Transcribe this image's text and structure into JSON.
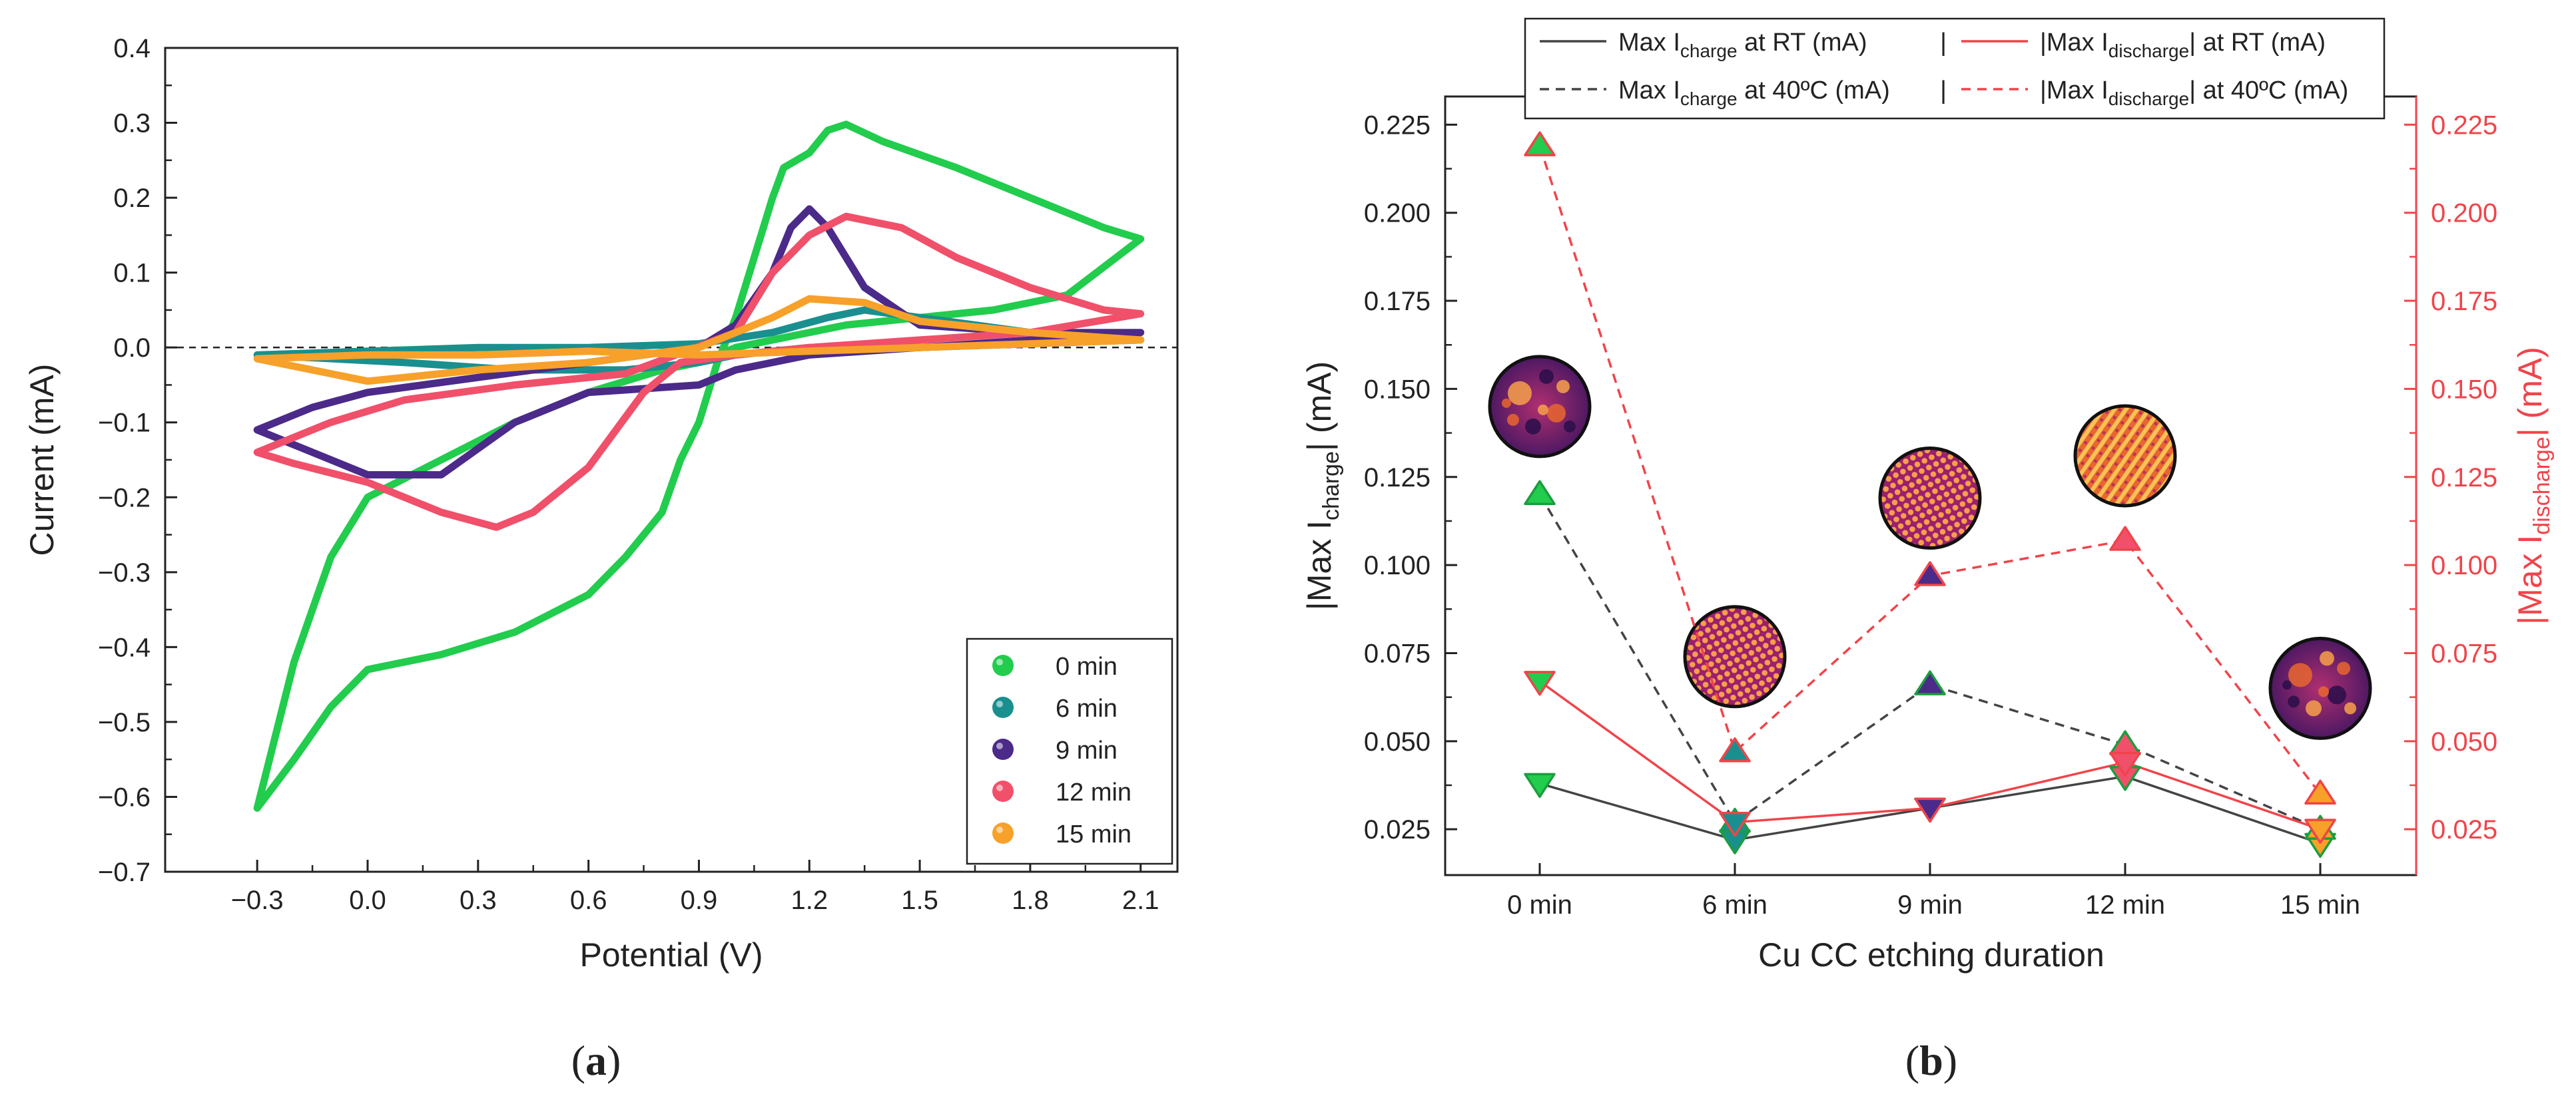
{
  "chart_data": [
    {
      "type": "line",
      "panel_label": "(a)",
      "panel_label_parts": [
        "(",
        "a",
        ")"
      ],
      "xlabel": "Potential (V)",
      "ylabel": "Current (mA)",
      "xlim": [
        -0.55,
        2.2
      ],
      "ylim": [
        -0.7,
        0.4
      ],
      "xticks": [
        "−0.3",
        "0.0",
        "0.3",
        "0.6",
        "0.9",
        "1.2",
        "1.5",
        "1.8",
        "2.1"
      ],
      "xtick_values": [
        -0.3,
        0.0,
        0.3,
        0.6,
        0.9,
        1.2,
        1.5,
        1.8,
        2.1
      ],
      "yticks": [
        "−0.7",
        "−0.6",
        "−0.5",
        "−0.4",
        "−0.3",
        "−0.2",
        "−0.1",
        "0.0",
        "0.1",
        "0.2",
        "0.3",
        "0.4"
      ],
      "ytick_values": [
        -0.7,
        -0.6,
        -0.5,
        -0.4,
        -0.3,
        -0.2,
        -0.1,
        0.0,
        0.1,
        0.2,
        0.3,
        0.4
      ],
      "zero_line": 0.0,
      "legend_position": "bottom-right",
      "series": [
        {
          "name": "0 min",
          "color": "#22cc4d",
          "points": [
            [
              -0.3,
              -0.615
            ],
            [
              -0.2,
              -0.42
            ],
            [
              -0.1,
              -0.28
            ],
            [
              0.0,
              -0.2
            ],
            [
              0.2,
              -0.15
            ],
            [
              0.4,
              -0.1
            ],
            [
              0.6,
              -0.06
            ],
            [
              0.8,
              -0.03
            ],
            [
              0.9,
              -0.02
            ],
            [
              1.0,
              0.0
            ],
            [
              1.1,
              0.01
            ],
            [
              1.3,
              0.03
            ],
            [
              1.5,
              0.04
            ],
            [
              1.7,
              0.05
            ],
            [
              1.9,
              0.07
            ],
            [
              2.1,
              0.145
            ],
            [
              2.0,
              0.16
            ],
            [
              1.8,
              0.2
            ],
            [
              1.6,
              0.24
            ],
            [
              1.4,
              0.275
            ],
            [
              1.3,
              0.298
            ],
            [
              1.25,
              0.29
            ],
            [
              1.2,
              0.26
            ],
            [
              1.13,
              0.24
            ],
            [
              1.1,
              0.2
            ],
            [
              1.05,
              0.12
            ],
            [
              1.0,
              0.04
            ],
            [
              0.95,
              -0.02
            ],
            [
              0.9,
              -0.1
            ],
            [
              0.85,
              -0.15
            ],
            [
              0.8,
              -0.22
            ],
            [
              0.7,
              -0.28
            ],
            [
              0.6,
              -0.33
            ],
            [
              0.4,
              -0.38
            ],
            [
              0.2,
              -0.41
            ],
            [
              0.0,
              -0.43
            ],
            [
              -0.1,
              -0.48
            ],
            [
              -0.2,
              -0.55
            ],
            [
              -0.3,
              -0.615
            ]
          ]
        },
        {
          "name": "6 min",
          "color": "#1a8f8f",
          "points": [
            [
              -0.3,
              -0.01
            ],
            [
              0.0,
              -0.005
            ],
            [
              0.3,
              0.0
            ],
            [
              0.6,
              0.0
            ],
            [
              0.9,
              0.005
            ],
            [
              1.1,
              0.02
            ],
            [
              1.25,
              0.04
            ],
            [
              1.35,
              0.05
            ],
            [
              1.5,
              0.04
            ],
            [
              1.8,
              0.02
            ],
            [
              2.1,
              0.01
            ],
            [
              1.8,
              0.005
            ],
            [
              1.5,
              0.0
            ],
            [
              1.2,
              0.0
            ],
            [
              1.0,
              -0.01
            ],
            [
              0.9,
              -0.02
            ],
            [
              0.7,
              -0.03
            ],
            [
              0.4,
              -0.03
            ],
            [
              0.1,
              -0.02
            ],
            [
              -0.3,
              -0.01
            ]
          ]
        },
        {
          "name": "9 min",
          "color": "#4b2a8a",
          "points": [
            [
              -0.3,
              -0.11
            ],
            [
              -0.15,
              -0.08
            ],
            [
              0.0,
              -0.06
            ],
            [
              0.3,
              -0.04
            ],
            [
              0.6,
              -0.02
            ],
            [
              0.9,
              0.0
            ],
            [
              1.0,
              0.03
            ],
            [
              1.1,
              0.1
            ],
            [
              1.15,
              0.16
            ],
            [
              1.2,
              0.185
            ],
            [
              1.25,
              0.16
            ],
            [
              1.35,
              0.08
            ],
            [
              1.5,
              0.03
            ],
            [
              1.8,
              0.02
            ],
            [
              2.1,
              0.02
            ],
            [
              1.8,
              0.01
            ],
            [
              1.5,
              0.0
            ],
            [
              1.2,
              -0.01
            ],
            [
              1.0,
              -0.03
            ],
            [
              0.9,
              -0.05
            ],
            [
              0.6,
              -0.06
            ],
            [
              0.4,
              -0.1
            ],
            [
              0.2,
              -0.17
            ],
            [
              0.0,
              -0.17
            ],
            [
              -0.15,
              -0.14
            ],
            [
              -0.3,
              -0.11
            ]
          ]
        },
        {
          "name": "12 min",
          "color": "#f0506a",
          "points": [
            [
              -0.3,
              -0.14
            ],
            [
              -0.1,
              -0.1
            ],
            [
              0.1,
              -0.07
            ],
            [
              0.4,
              -0.05
            ],
            [
              0.7,
              -0.035
            ],
            [
              1.0,
              0.02
            ],
            [
              1.1,
              0.1
            ],
            [
              1.2,
              0.15
            ],
            [
              1.3,
              0.175
            ],
            [
              1.45,
              0.16
            ],
            [
              1.6,
              0.12
            ],
            [
              1.8,
              0.08
            ],
            [
              2.0,
              0.05
            ],
            [
              2.1,
              0.045
            ],
            [
              1.8,
              0.02
            ],
            [
              1.5,
              0.01
            ],
            [
              1.2,
              0.0
            ],
            [
              1.0,
              -0.01
            ],
            [
              0.85,
              -0.02
            ],
            [
              0.75,
              -0.06
            ],
            [
              0.6,
              -0.16
            ],
            [
              0.45,
              -0.22
            ],
            [
              0.35,
              -0.24
            ],
            [
              0.2,
              -0.22
            ],
            [
              0.0,
              -0.18
            ],
            [
              -0.2,
              -0.155
            ],
            [
              -0.3,
              -0.14
            ]
          ]
        },
        {
          "name": "15 min",
          "color": "#f7a12a",
          "points": [
            [
              -0.3,
              -0.015
            ],
            [
              0.0,
              -0.045
            ],
            [
              0.3,
              -0.03
            ],
            [
              0.6,
              -0.02
            ],
            [
              0.9,
              0.0
            ],
            [
              1.1,
              0.04
            ],
            [
              1.2,
              0.065
            ],
            [
              1.35,
              0.06
            ],
            [
              1.5,
              0.035
            ],
            [
              1.8,
              0.02
            ],
            [
              2.1,
              0.01
            ],
            [
              1.8,
              0.005
            ],
            [
              1.5,
              0.0
            ],
            [
              1.2,
              -0.005
            ],
            [
              0.9,
              -0.01
            ],
            [
              0.6,
              -0.005
            ],
            [
              0.3,
              -0.01
            ],
            [
              0.0,
              -0.01
            ],
            [
              -0.3,
              -0.015
            ]
          ]
        }
      ]
    },
    {
      "type": "line",
      "panel_label": "(b)",
      "panel_label_parts": [
        "(",
        "b",
        ")"
      ],
      "xlabel": "Cu CC etching duration",
      "ylabel_left": {
        "prefix": "|Max I",
        "sub": "charge",
        "suffix": "| (mA)"
      },
      "ylabel_right": {
        "prefix": "|Max I",
        "sub": "discharge",
        "suffix": "| (mA)"
      },
      "categories": [
        "0 min",
        "6 min",
        "9 min",
        "12 min",
        "15 min"
      ],
      "ylim": [
        0.012,
        0.233
      ],
      "yticks": [
        "0.025",
        "0.050",
        "0.075",
        "0.100",
        "0.125",
        "0.150",
        "0.175",
        "0.200",
        "0.225"
      ],
      "ytick_values": [
        0.025,
        0.05,
        0.075,
        0.1,
        0.125,
        0.15,
        0.175,
        0.2,
        0.225
      ],
      "marker_fills": [
        "#22cc4d",
        "#1a8f8f",
        "#4b2a8a",
        "#f0506a",
        "#f7a12a"
      ],
      "series": [
        {
          "name": "Max I_charge at RT (mA)",
          "legend": {
            "prefix": "Max I",
            "sub": "charge",
            "suffix": " at RT (mA)"
          },
          "axis": "left",
          "marker": "down",
          "line_color": "#444444",
          "dashed": false,
          "values": [
            0.038,
            0.022,
            0.031,
            0.04,
            0.021
          ]
        },
        {
          "name": "Max I_charge at 40ºC (mA)",
          "legend": {
            "prefix": "Max I",
            "sub": "charge",
            "suffix": " at 40ºC (mA)"
          },
          "axis": "left",
          "marker": "up",
          "line_color": "#444444",
          "dashed": true,
          "values": [
            0.12,
            0.027,
            0.066,
            0.049,
            0.025
          ]
        },
        {
          "name": "|Max I_discharge| at RT (mA)",
          "legend": {
            "prefix": "|Max I",
            "sub": "discharge",
            "suffix": "| at RT (mA)"
          },
          "axis": "right",
          "marker": "down",
          "line_color": "#f0444a",
          "dashed": false,
          "values": [
            0.067,
            0.027,
            0.031,
            0.044,
            0.025
          ]
        },
        {
          "name": "|Max I_discharge| at 40ºC (mA)",
          "legend": {
            "prefix": "|Max I",
            "sub": "discharge",
            "suffix": "| at 40ºC (mA)"
          },
          "axis": "right",
          "marker": "up",
          "line_color": "#f0444a",
          "dashed": true,
          "values": [
            0.219,
            0.047,
            0.097,
            0.107,
            0.035
          ]
        }
      ],
      "legend_separator": "|",
      "insets": [
        {
          "category": "0 min",
          "value": 0.145,
          "pattern": "disordered"
        },
        {
          "category": "6 min",
          "value": 0.074,
          "pattern": "hexagonal"
        },
        {
          "category": "9 min",
          "value": 0.119,
          "pattern": "hexagonal"
        },
        {
          "category": "12 min",
          "value": 0.131,
          "pattern": "striped"
        },
        {
          "category": "15 min",
          "value": 0.065,
          "pattern": "disordered"
        }
      ]
    }
  ]
}
